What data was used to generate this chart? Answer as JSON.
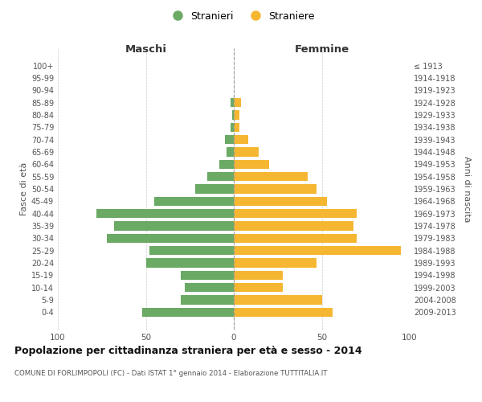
{
  "age_groups": [
    "100+",
    "95-99",
    "90-94",
    "85-89",
    "80-84",
    "75-79",
    "70-74",
    "65-69",
    "60-64",
    "55-59",
    "50-54",
    "45-49",
    "40-44",
    "35-39",
    "30-34",
    "25-29",
    "20-24",
    "15-19",
    "10-14",
    "5-9",
    "0-4"
  ],
  "birth_years": [
    "≤ 1913",
    "1914-1918",
    "1919-1923",
    "1924-1928",
    "1929-1933",
    "1934-1938",
    "1939-1943",
    "1944-1948",
    "1949-1953",
    "1954-1958",
    "1959-1963",
    "1964-1968",
    "1969-1973",
    "1974-1978",
    "1979-1983",
    "1984-1988",
    "1989-1993",
    "1994-1998",
    "1999-2003",
    "2004-2008",
    "2009-2013"
  ],
  "maschi": [
    0,
    0,
    0,
    2,
    1,
    2,
    5,
    4,
    8,
    15,
    22,
    45,
    78,
    68,
    72,
    48,
    50,
    30,
    28,
    30,
    52
  ],
  "femmine": [
    0,
    0,
    0,
    4,
    3,
    3,
    8,
    14,
    20,
    42,
    47,
    53,
    70,
    68,
    70,
    95,
    47,
    28,
    28,
    50,
    56
  ],
  "color_maschi": "#6aaa64",
  "color_femmine": "#f5b731",
  "title": "Popolazione per cittadinanza straniera per età e sesso - 2014",
  "subtitle": "COMUNE DI FORLIMPOPOLI (FC) - Dati ISTAT 1° gennaio 2014 - Elaborazione TUTTITALIA.IT",
  "xlabel_left": "Maschi",
  "xlabel_right": "Femmine",
  "ylabel_left": "Fasce di età",
  "ylabel_right": "Anni di nascita",
  "legend_maschi": "Stranieri",
  "legend_femmine": "Straniere",
  "xlim": 100,
  "bg_color": "#ffffff",
  "grid_color": "#cccccc",
  "bar_height": 0.75
}
